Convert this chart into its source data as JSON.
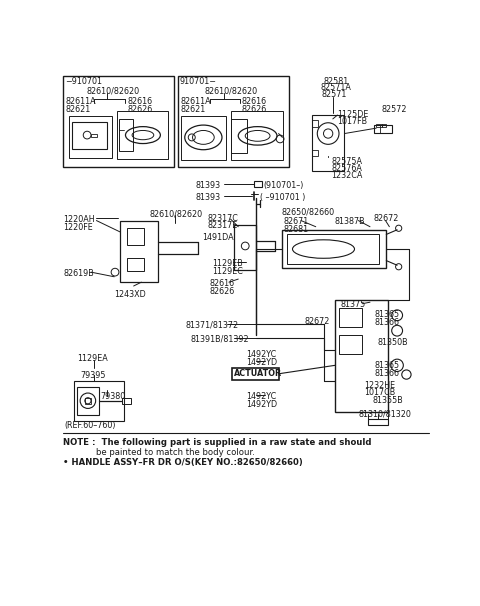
{
  "note_line1": "NOTE :  The following part is supplied in a raw state and should",
  "note_line2": "            be painted to match the body colour.",
  "note_line3": "• HANDLE ASSY–FR DR O/S(KEY NO.:82650/82660)",
  "fg": "#1a1a1a",
  "lw": 0.7
}
